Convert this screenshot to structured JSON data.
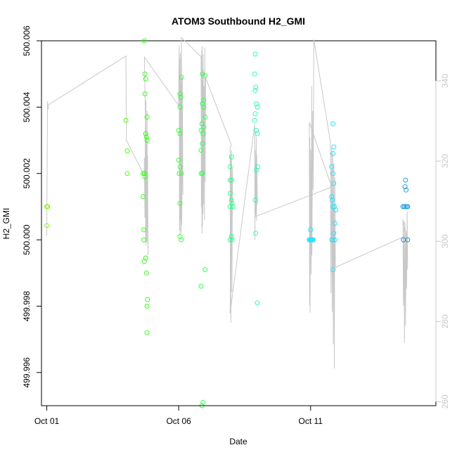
{
  "chart_data": {
    "type": "scatter",
    "title": "ATOM3 Southbound H2_GMI",
    "xlabel": "Date",
    "ylabel": "H2_GMI",
    "xlim": [
      -0.2,
      14.75
    ],
    "ylim": [
      499.995,
      500.006
    ],
    "y2lim": [
      259,
      350
    ],
    "x_ticks": [
      {
        "value": 0,
        "label": "Oct 01"
      },
      {
        "value": 5,
        "label": "Oct 06"
      },
      {
        "value": 10,
        "label": "Oct 11"
      }
    ],
    "y_ticks": [
      499.996,
      499.998,
      500.0,
      500.002,
      500.004,
      500.006
    ],
    "y_tick_labels": [
      "499.996",
      "499.998",
      "500.000",
      "500.002",
      "500.004",
      "500.006"
    ],
    "y2_ticks": [
      260,
      280,
      300,
      320,
      340
    ],
    "y2_tick_labels": [
      "260",
      "280",
      "300",
      "320",
      "340"
    ],
    "grid": false,
    "legend": "none",
    "points_color_by": "time (green to cyan to blue)",
    "points": [
      {
        "x": 0.0,
        "y": 500.001,
        "c": "#7bff00"
      },
      {
        "x": 0.03,
        "y": 500.001,
        "c": "#7bff00"
      },
      {
        "x": 0.0,
        "y": 500.00043,
        "c": "#7bff00"
      },
      {
        "x": 3.0,
        "y": 500.0036,
        "c": "#50ff00"
      },
      {
        "x": 3.05,
        "y": 500.00268,
        "c": "#50ff00"
      },
      {
        "x": 3.05,
        "y": 500.002,
        "c": "#50ff00"
      },
      {
        "x": 3.7,
        "y": 500.006,
        "c": "#36ff1a"
      },
      {
        "x": 3.72,
        "y": 500.005,
        "c": "#36ff1a"
      },
      {
        "x": 3.75,
        "y": 500.00485,
        "c": "#36ff1a"
      },
      {
        "x": 3.72,
        "y": 500.0044,
        "c": "#36ff1a"
      },
      {
        "x": 3.8,
        "y": 500.0037,
        "c": "#36ff1a"
      },
      {
        "x": 3.75,
        "y": 500.0032,
        "c": "#36ff1a"
      },
      {
        "x": 3.78,
        "y": 500.0031,
        "c": "#36ff1a"
      },
      {
        "x": 3.8,
        "y": 500.003,
        "c": "#36ff1a"
      },
      {
        "x": 3.65,
        "y": 500.002,
        "c": "#36ff1a"
      },
      {
        "x": 3.7,
        "y": 500.002,
        "c": "#36ff1a"
      },
      {
        "x": 3.72,
        "y": 500.0019,
        "c": "#36ff1a"
      },
      {
        "x": 3.65,
        "y": 500.0013,
        "c": "#36ff1a"
      },
      {
        "x": 3.68,
        "y": 500.0003,
        "c": "#36ff1a"
      },
      {
        "x": 3.68,
        "y": 500.0,
        "c": "#36ff1a"
      },
      {
        "x": 3.75,
        "y": 499.99945,
        "c": "#36ff1a"
      },
      {
        "x": 3.7,
        "y": 499.99935,
        "c": "#36ff1a"
      },
      {
        "x": 3.78,
        "y": 499.999,
        "c": "#36ff1a"
      },
      {
        "x": 3.82,
        "y": 499.9982,
        "c": "#36ff1a"
      },
      {
        "x": 3.8,
        "y": 499.998,
        "c": "#36ff1a"
      },
      {
        "x": 3.8,
        "y": 499.9972,
        "c": "#36ff1a"
      },
      {
        "x": 5.1,
        "y": 500.0049,
        "c": "#3aff3a"
      },
      {
        "x": 5.05,
        "y": 500.0044,
        "c": "#3aff3a"
      },
      {
        "x": 5.08,
        "y": 500.0043,
        "c": "#3aff3a"
      },
      {
        "x": 5.05,
        "y": 500.004,
        "c": "#3aff3a"
      },
      {
        "x": 5.0,
        "y": 500.0033,
        "c": "#3aff3a"
      },
      {
        "x": 5.05,
        "y": 500.0032,
        "c": "#3aff3a"
      },
      {
        "x": 5.0,
        "y": 500.0024,
        "c": "#3aff3a"
      },
      {
        "x": 5.05,
        "y": 500.0022,
        "c": "#3aff3a"
      },
      {
        "x": 5.02,
        "y": 500.002,
        "c": "#3aff3a"
      },
      {
        "x": 5.1,
        "y": 500.002,
        "c": "#3aff3a"
      },
      {
        "x": 5.05,
        "y": 500.0011,
        "c": "#3aff3a"
      },
      {
        "x": 5.05,
        "y": 500.0001,
        "c": "#3aff3a"
      },
      {
        "x": 5.1,
        "y": 500.0,
        "c": "#3aff3a"
      },
      {
        "x": 5.9,
        "y": 500.005,
        "c": "#33ff55"
      },
      {
        "x": 6.0,
        "y": 500.00495,
        "c": "#33ff55"
      },
      {
        "x": 5.95,
        "y": 500.0042,
        "c": "#33ff55"
      },
      {
        "x": 5.9,
        "y": 500.0041,
        "c": "#33ff55"
      },
      {
        "x": 5.95,
        "y": 500.004,
        "c": "#33ff55"
      },
      {
        "x": 6.0,
        "y": 500.0037,
        "c": "#33ff55"
      },
      {
        "x": 5.88,
        "y": 500.0035,
        "c": "#33ff55"
      },
      {
        "x": 5.95,
        "y": 500.0034,
        "c": "#33ff55"
      },
      {
        "x": 5.85,
        "y": 500.0033,
        "c": "#33ff55"
      },
      {
        "x": 5.92,
        "y": 500.0032,
        "c": "#33ff55"
      },
      {
        "x": 5.9,
        "y": 500.0029,
        "c": "#33ff55"
      },
      {
        "x": 5.85,
        "y": 500.0027,
        "c": "#33ff55"
      },
      {
        "x": 5.85,
        "y": 500.002,
        "c": "#33ff55"
      },
      {
        "x": 5.9,
        "y": 500.002,
        "c": "#33ff55"
      },
      {
        "x": 6.0,
        "y": 499.9991,
        "c": "#33ff55"
      },
      {
        "x": 5.85,
        "y": 499.9986,
        "c": "#33ff55"
      },
      {
        "x": 5.92,
        "y": 499.9951,
        "c": "#33ff55"
      },
      {
        "x": 5.88,
        "y": 499.995,
        "c": "#33ff55"
      },
      {
        "x": 7.0,
        "y": 500.0025,
        "c": "#2eff88"
      },
      {
        "x": 6.95,
        "y": 500.0022,
        "c": "#2eff88"
      },
      {
        "x": 6.95,
        "y": 500.0018,
        "c": "#2eff88"
      },
      {
        "x": 7.0,
        "y": 500.0018,
        "c": "#2eff88"
      },
      {
        "x": 6.95,
        "y": 500.0014,
        "c": "#2eff88"
      },
      {
        "x": 7.0,
        "y": 500.0012,
        "c": "#2eff88"
      },
      {
        "x": 7.02,
        "y": 500.0011,
        "c": "#2eff88"
      },
      {
        "x": 6.95,
        "y": 500.001,
        "c": "#2eff88"
      },
      {
        "x": 7.05,
        "y": 500.001,
        "c": "#2eff88"
      },
      {
        "x": 7.0,
        "y": 500.0001,
        "c": "#2eff88"
      },
      {
        "x": 6.95,
        "y": 500.0,
        "c": "#2eff88"
      },
      {
        "x": 7.02,
        "y": 500.0,
        "c": "#2eff88"
      },
      {
        "x": 7.9,
        "y": 500.0056,
        "c": "#29ffb0"
      },
      {
        "x": 7.88,
        "y": 500.005,
        "c": "#29ffb0"
      },
      {
        "x": 7.92,
        "y": 500.0046,
        "c": "#29ffb0"
      },
      {
        "x": 7.9,
        "y": 500.0045,
        "c": "#29ffb0"
      },
      {
        "x": 7.95,
        "y": 500.0041,
        "c": "#29ffb0"
      },
      {
        "x": 7.98,
        "y": 500.004,
        "c": "#29ffb0"
      },
      {
        "x": 7.9,
        "y": 500.0038,
        "c": "#29ffb0"
      },
      {
        "x": 7.88,
        "y": 500.0036,
        "c": "#29ffb0"
      },
      {
        "x": 7.95,
        "y": 500.0033,
        "c": "#29ffb0"
      },
      {
        "x": 7.98,
        "y": 500.0032,
        "c": "#29ffb0"
      },
      {
        "x": 8.0,
        "y": 500.0022,
        "c": "#29ffb0"
      },
      {
        "x": 7.95,
        "y": 500.0021,
        "c": "#29ffb0"
      },
      {
        "x": 7.9,
        "y": 500.0012,
        "c": "#29ffb0"
      },
      {
        "x": 7.92,
        "y": 500.0002,
        "c": "#29ffb0"
      },
      {
        "x": 7.98,
        "y": 499.9981,
        "c": "#29ffb0"
      },
      {
        "x": 10.0,
        "y": 500.0003,
        "c": "#1ee6ff"
      },
      {
        "x": 9.95,
        "y": 500.0,
        "c": "#1ee6ff"
      },
      {
        "x": 9.98,
        "y": 500.0,
        "c": "#1ee6ff"
      },
      {
        "x": 10.0,
        "y": 500.0,
        "c": "#1ee6ff"
      },
      {
        "x": 10.02,
        "y": 500.0,
        "c": "#1ee6ff"
      },
      {
        "x": 10.05,
        "y": 500.0,
        "c": "#1ee6ff"
      },
      {
        "x": 10.08,
        "y": 500.0,
        "c": "#1ee6ff"
      },
      {
        "x": 10.1,
        "y": 500.0,
        "c": "#1ee6ff"
      },
      {
        "x": 10.85,
        "y": 500.0035,
        "c": "#27e3ff"
      },
      {
        "x": 10.88,
        "y": 500.0028,
        "c": "#27e3ff"
      },
      {
        "x": 10.85,
        "y": 500.0026,
        "c": "#27e3ff"
      },
      {
        "x": 10.8,
        "y": 500.0022,
        "c": "#27e3ff"
      },
      {
        "x": 10.85,
        "y": 500.002,
        "c": "#27e3ff"
      },
      {
        "x": 10.88,
        "y": 500.0017,
        "c": "#27e3ff"
      },
      {
        "x": 10.8,
        "y": 500.0013,
        "c": "#27e3ff"
      },
      {
        "x": 10.82,
        "y": 500.0012,
        "c": "#27e3ff"
      },
      {
        "x": 10.85,
        "y": 500.001,
        "c": "#27e3ff"
      },
      {
        "x": 10.9,
        "y": 500.001,
        "c": "#27e3ff"
      },
      {
        "x": 10.95,
        "y": 500.0009,
        "c": "#27e3ff"
      },
      {
        "x": 10.92,
        "y": 500.0005,
        "c": "#27e3ff"
      },
      {
        "x": 10.88,
        "y": 500.0002,
        "c": "#27e3ff"
      },
      {
        "x": 10.8,
        "y": 500.0,
        "c": "#27e3ff"
      },
      {
        "x": 10.85,
        "y": 500.0,
        "c": "#27e3ff"
      },
      {
        "x": 10.92,
        "y": 500.0,
        "c": "#27e3ff"
      },
      {
        "x": 10.85,
        "y": 499.9991,
        "c": "#27e3ff"
      },
      {
        "x": 13.6,
        "y": 500.0018,
        "c": "#1f9dde"
      },
      {
        "x": 13.58,
        "y": 500.0016,
        "c": "#1f9dde"
      },
      {
        "x": 13.62,
        "y": 500.0015,
        "c": "#1f9dde"
      },
      {
        "x": 13.5,
        "y": 500.001,
        "c": "#1fa2e6"
      },
      {
        "x": 13.55,
        "y": 500.001,
        "c": "#1fa2e6"
      },
      {
        "x": 13.6,
        "y": 500.001,
        "c": "#1fa2e6"
      },
      {
        "x": 13.65,
        "y": 500.001,
        "c": "#1fa2e6"
      },
      {
        "x": 13.68,
        "y": 500.001,
        "c": "#1fa2e6"
      },
      {
        "x": 13.52,
        "y": 500.0,
        "c": "#2a8ccc"
      },
      {
        "x": 13.68,
        "y": 500.0,
        "c": "#2a8ccc"
      }
    ],
    "secondary_series_line": [
      [
        0.0,
        500.00013
      ],
      [
        0.03,
        500.00418
      ],
      [
        0.05,
        500.00393
      ],
      [
        0.06,
        500.00407
      ],
      [
        3.0,
        500.00554
      ],
      [
        3.02,
        500.003
      ],
      [
        3.7,
        500.00194
      ],
      [
        3.7,
        500.00248
      ],
      [
        3.72,
        500.00067
      ],
      [
        3.74,
        500.00351
      ],
      [
        3.75,
        499.99984
      ],
      [
        3.76,
        500.0042
      ],
      [
        3.77,
        499.99996
      ],
      [
        3.78,
        500.0031
      ],
      [
        3.79,
        499.99991
      ],
      [
        3.8,
        500.00389
      ],
      [
        3.81,
        500.00051
      ],
      [
        3.82,
        500.00255
      ],
      [
        3.84,
        499.99953
      ],
      [
        3.7,
        500.00551
      ],
      [
        5.0,
        500.00405
      ],
      [
        5.02,
        500.00586
      ],
      [
        5.03,
        500.00029
      ],
      [
        5.04,
        500.00548
      ],
      [
        5.05,
        500.0001
      ],
      [
        5.06,
        500.00562
      ],
      [
        5.07,
        500.00058
      ],
      [
        5.08,
        500.00474
      ],
      [
        5.09,
        500.0002
      ],
      [
        5.1,
        500.00571
      ],
      [
        5.12,
        500.00044
      ],
      [
        5.14,
        500.0049
      ],
      [
        5.16,
        500.00135
      ],
      [
        5.1,
        500.0061
      ],
      [
        5.85,
        500.00552
      ],
      [
        5.86,
        500.00097
      ],
      [
        5.87,
        500.00571
      ],
      [
        5.88,
        500.0002
      ],
      [
        5.89,
        500.00583
      ],
      [
        5.9,
        500.00039
      ],
      [
        5.91,
        500.00517
      ],
      [
        5.92,
        500.00077
      ],
      [
        5.93,
        500.0056
      ],
      [
        5.94,
        500.00106
      ],
      [
        5.96,
        500.00464
      ],
      [
        5.98,
        500.00059
      ],
      [
        5.99,
        500.0058
      ],
      [
        6.0,
        500.00174
      ],
      [
        6.02,
        500.00489
      ],
      [
        7.0,
        500.00285
      ],
      [
        6.95,
        500.00279
      ],
      [
        6.96,
        499.99826
      ],
      [
        6.97,
        500.00252
      ],
      [
        6.98,
        499.9975
      ],
      [
        7.0,
        500.0027
      ],
      [
        7.02,
        499.99843
      ],
      [
        7.04,
        500.00216
      ],
      [
        6.95,
        499.99779
      ],
      [
        7.88,
        500.00348
      ],
      [
        7.89,
        500.0
      ],
      [
        7.9,
        500.00271
      ],
      [
        7.92,
        500.00081
      ],
      [
        7.94,
        500.00309
      ],
      [
        7.95,
        500.00058
      ],
      [
        7.96,
        500.00255
      ],
      [
        7.98,
        500.00116
      ],
      [
        7.9,
        500.0007
      ],
      [
        10.8,
        500.00159
      ],
      [
        9.95,
        500.00354
      ],
      [
        9.96,
        499.99804
      ],
      [
        9.97,
        500.00309
      ],
      [
        9.98,
        499.9978
      ],
      [
        10.0,
        500.00272
      ],
      [
        10.02,
        499.99895
      ],
      [
        10.04,
        500.00464
      ],
      [
        10.05,
        499.99953
      ],
      [
        10.08,
        500.00388
      ],
      [
        10.1,
        500.0015
      ],
      [
        10.12,
        500.00604
      ],
      [
        10.75,
        500.00295
      ],
      [
        10.77,
        499.9984
      ],
      [
        10.8,
        500.00276
      ],
      [
        10.82,
        499.99783
      ],
      [
        10.84,
        500.00264
      ],
      [
        10.86,
        499.99685
      ],
      [
        10.88,
        500.00231
      ],
      [
        10.9,
        499.99612
      ],
      [
        10.92,
        500.00188
      ],
      [
        10.94,
        499.99917
      ],
      [
        13.6,
        500.00012
      ],
      [
        13.5,
        500.00062
      ],
      [
        13.52,
        499.99802
      ],
      [
        13.54,
        500.00052
      ],
      [
        13.56,
        499.99689
      ],
      [
        13.58,
        500.00056
      ],
      [
        13.6,
        499.99741
      ],
      [
        13.62,
        500.00027
      ],
      [
        13.64,
        499.99853
      ],
      [
        13.66,
        500.00085
      ],
      [
        13.68,
        499.9991
      ]
    ],
    "colors": {
      "line": "#c8c8c8",
      "axis": "#000000",
      "axis2": "#c8c8c8"
    }
  }
}
